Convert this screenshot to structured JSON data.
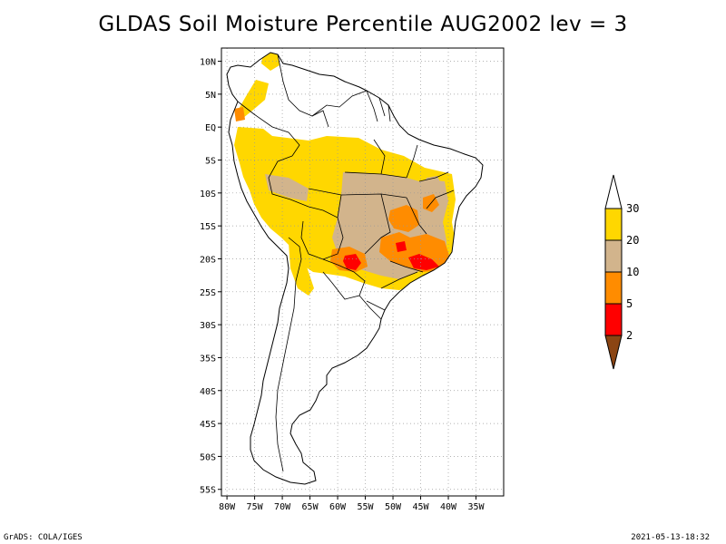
{
  "title": "GLDAS Soil Moisture Percentile AUG2002 lev = 3",
  "footer": {
    "credit": "GrADS: COLA/IGES",
    "timestamp": "2021-05-13-18:32"
  },
  "map": {
    "lon_range": [
      -81,
      -30
    ],
    "lat_range": [
      -56,
      12
    ],
    "lat_ticks": [
      {
        "value": 10,
        "label": "10N"
      },
      {
        "value": 5,
        "label": "5N"
      },
      {
        "value": 0,
        "label": "EQ"
      },
      {
        "value": -5,
        "label": "5S"
      },
      {
        "value": -10,
        "label": "10S"
      },
      {
        "value": -15,
        "label": "15S"
      },
      {
        "value": -20,
        "label": "20S"
      },
      {
        "value": -25,
        "label": "25S"
      },
      {
        "value": -30,
        "label": "30S"
      },
      {
        "value": -35,
        "label": "35S"
      },
      {
        "value": -40,
        "label": "40S"
      },
      {
        "value": -45,
        "label": "45S"
      },
      {
        "value": -50,
        "label": "50S"
      },
      {
        "value": -55,
        "label": "55S"
      }
    ],
    "lon_ticks": [
      {
        "value": -80,
        "label": "80W"
      },
      {
        "value": -75,
        "label": "75W"
      },
      {
        "value": -70,
        "label": "70W"
      },
      {
        "value": -65,
        "label": "65W"
      },
      {
        "value": -60,
        "label": "60W"
      },
      {
        "value": -55,
        "label": "55W"
      },
      {
        "value": -50,
        "label": "50W"
      },
      {
        "value": -45,
        "label": "45W"
      },
      {
        "value": -40,
        "label": "40W"
      },
      {
        "value": -35,
        "label": "35W"
      }
    ]
  },
  "colorbar": {
    "labels": [
      "2",
      "5",
      "10",
      "20",
      "30"
    ],
    "colors": {
      "below_2": "#8B4513",
      "2_5": "#FF0000",
      "5_10": "#FF8C00",
      "10_20": "#D2B48C",
      "20_30": "#FFD700",
      "above_30": "#FFFFFF"
    }
  },
  "colors": {
    "coast": "#000000",
    "grid": "#999999"
  }
}
